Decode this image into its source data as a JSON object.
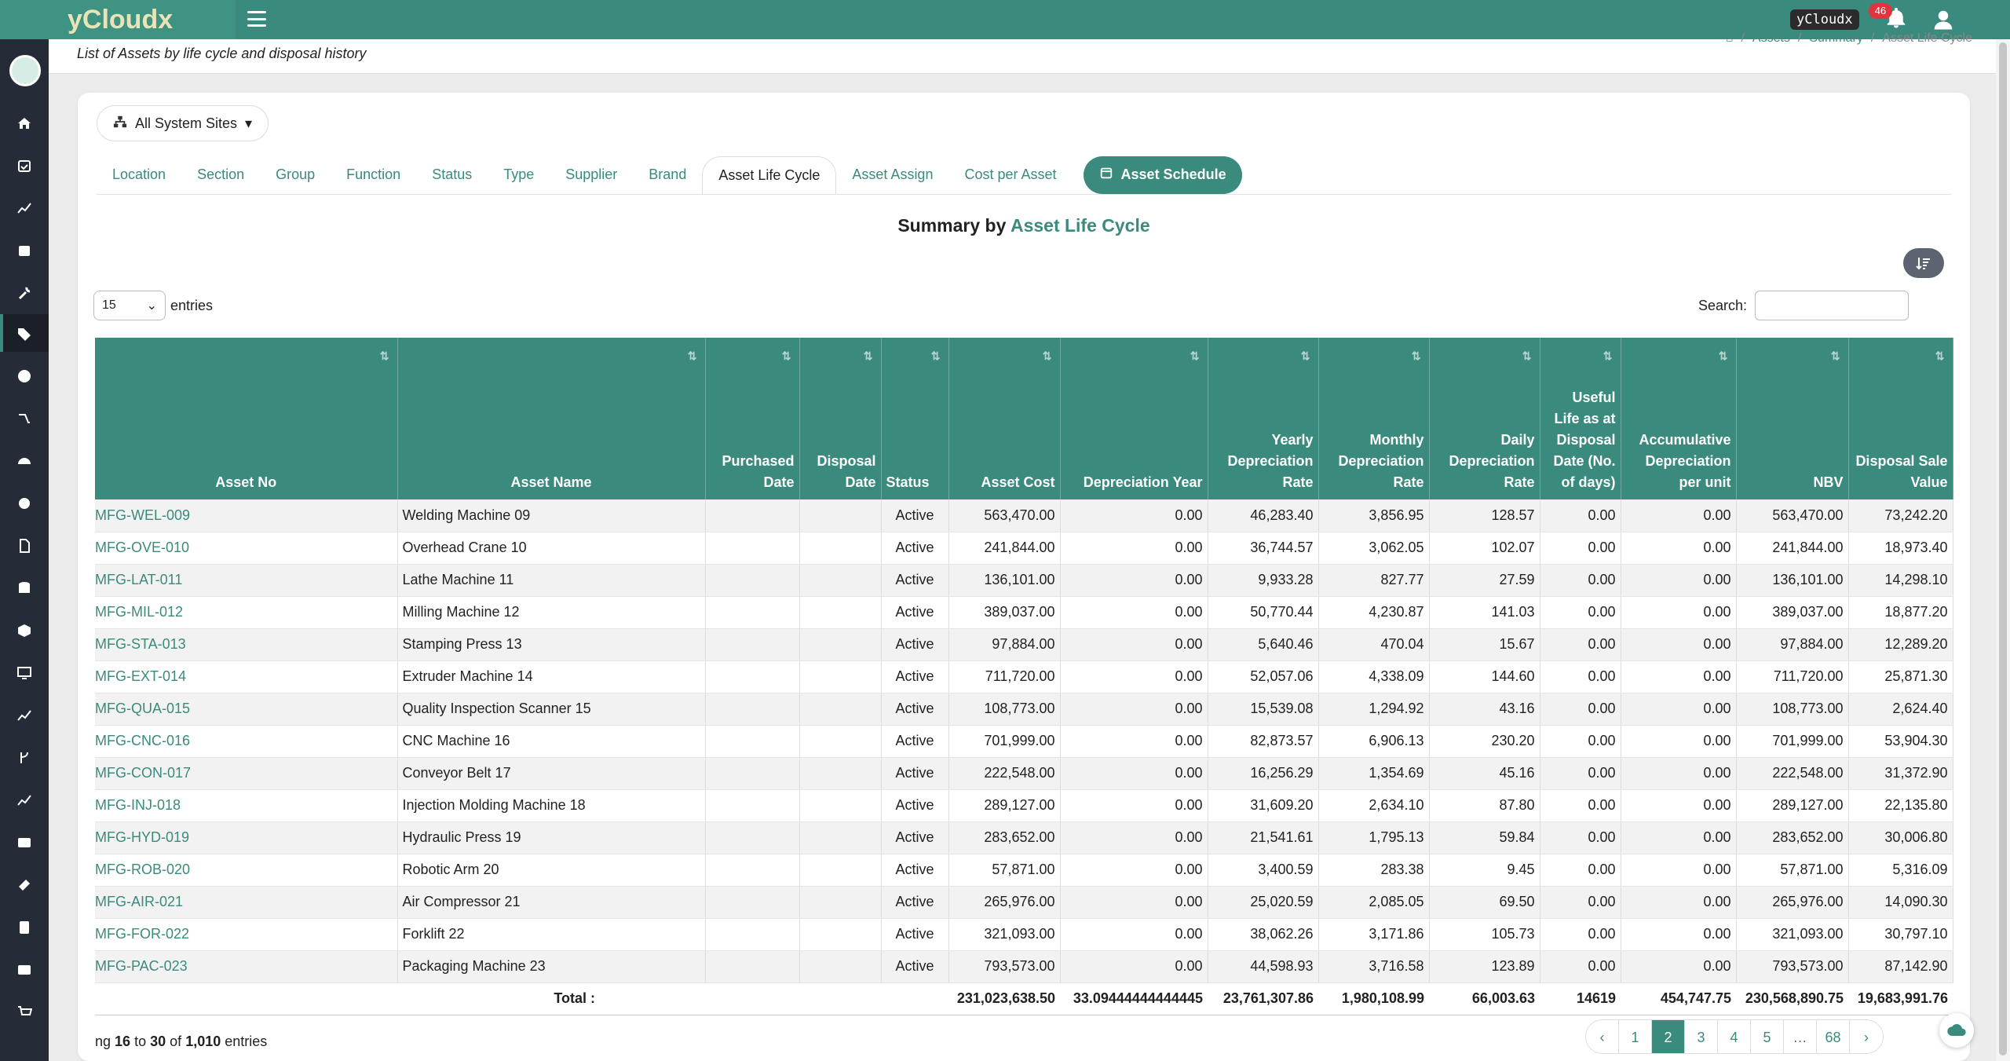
{
  "app": {
    "brand": "yCloudx",
    "tag": "yCloudx",
    "notifications": "46"
  },
  "colors": {
    "accent": "#3a8a7d",
    "sidebar": "#252c38",
    "badge": "#e3343e"
  },
  "header": {
    "title": "List of Assets by life cycle and disposal history",
    "breadcrumb": [
      "Assets",
      "Summary",
      "Asset Life Cycle"
    ]
  },
  "sites_button": "All System Sites",
  "tabs": [
    {
      "label": "Location"
    },
    {
      "label": "Section"
    },
    {
      "label": "Group"
    },
    {
      "label": "Function"
    },
    {
      "label": "Status"
    },
    {
      "label": "Type"
    },
    {
      "label": "Supplier"
    },
    {
      "label": "Brand"
    },
    {
      "label": "Asset Life Cycle"
    },
    {
      "label": "Asset Assign"
    },
    {
      "label": "Cost per Asset"
    },
    {
      "label": "Asset Schedule"
    }
  ],
  "summary": {
    "prefix": "Summary by",
    "accent": "Asset Life Cycle"
  },
  "length": {
    "value": "15",
    "suffix": "entries"
  },
  "search": {
    "label": "Search:",
    "value": ""
  },
  "table": {
    "columns": [
      "Asset No",
      "Asset Name",
      "Purchased Date",
      "Disposal Date",
      "Status",
      "Asset Cost",
      "Depreciation Year",
      "Yearly Depreciation Rate",
      "Monthly Depreciation Rate",
      "Daily Depreciation Rate",
      "Useful Life as at Disposal Date (No. of days)",
      "Accumulative Depreciation per unit",
      "NBV",
      "Disposal Sale Value"
    ],
    "rows": [
      [
        "MFG-WEL-009",
        "Welding Machine 09",
        "",
        "",
        "Active",
        "563,470.00",
        "0.00",
        "46,283.40",
        "3,856.95",
        "128.57",
        "0.00",
        "0.00",
        "563,470.00",
        "73,242.20"
      ],
      [
        "MFG-OVE-010",
        "Overhead Crane 10",
        "",
        "",
        "Active",
        "241,844.00",
        "0.00",
        "36,744.57",
        "3,062.05",
        "102.07",
        "0.00",
        "0.00",
        "241,844.00",
        "18,973.40"
      ],
      [
        "MFG-LAT-011",
        "Lathe Machine 11",
        "",
        "",
        "Active",
        "136,101.00",
        "0.00",
        "9,933.28",
        "827.77",
        "27.59",
        "0.00",
        "0.00",
        "136,101.00",
        "14,298.10"
      ],
      [
        "MFG-MIL-012",
        "Milling Machine 12",
        "",
        "",
        "Active",
        "389,037.00",
        "0.00",
        "50,770.44",
        "4,230.87",
        "141.03",
        "0.00",
        "0.00",
        "389,037.00",
        "18,877.20"
      ],
      [
        "MFG-STA-013",
        "Stamping Press 13",
        "",
        "",
        "Active",
        "97,884.00",
        "0.00",
        "5,640.46",
        "470.04",
        "15.67",
        "0.00",
        "0.00",
        "97,884.00",
        "12,289.20"
      ],
      [
        "MFG-EXT-014",
        "Extruder Machine 14",
        "",
        "",
        "Active",
        "711,720.00",
        "0.00",
        "52,057.06",
        "4,338.09",
        "144.60",
        "0.00",
        "0.00",
        "711,720.00",
        "25,871.30"
      ],
      [
        "MFG-QUA-015",
        "Quality Inspection Scanner 15",
        "",
        "",
        "Active",
        "108,773.00",
        "0.00",
        "15,539.08",
        "1,294.92",
        "43.16",
        "0.00",
        "0.00",
        "108,773.00",
        "2,624.40"
      ],
      [
        "MFG-CNC-016",
        "CNC Machine 16",
        "",
        "",
        "Active",
        "701,999.00",
        "0.00",
        "82,873.57",
        "6,906.13",
        "230.20",
        "0.00",
        "0.00",
        "701,999.00",
        "53,904.30"
      ],
      [
        "MFG-CON-017",
        "Conveyor Belt 17",
        "",
        "",
        "Active",
        "222,548.00",
        "0.00",
        "16,256.29",
        "1,354.69",
        "45.16",
        "0.00",
        "0.00",
        "222,548.00",
        "31,372.90"
      ],
      [
        "MFG-INJ-018",
        "Injection Molding Machine 18",
        "",
        "",
        "Active",
        "289,127.00",
        "0.00",
        "31,609.20",
        "2,634.10",
        "87.80",
        "0.00",
        "0.00",
        "289,127.00",
        "22,135.80"
      ],
      [
        "MFG-HYD-019",
        "Hydraulic Press 19",
        "",
        "",
        "Active",
        "283,652.00",
        "0.00",
        "21,541.61",
        "1,795.13",
        "59.84",
        "0.00",
        "0.00",
        "283,652.00",
        "30,006.80"
      ],
      [
        "MFG-ROB-020",
        "Robotic Arm 20",
        "",
        "",
        "Active",
        "57,871.00",
        "0.00",
        "3,400.59",
        "283.38",
        "9.45",
        "0.00",
        "0.00",
        "57,871.00",
        "5,316.09"
      ],
      [
        "MFG-AIR-021",
        "Air Compressor 21",
        "",
        "",
        "Active",
        "265,976.00",
        "0.00",
        "25,020.59",
        "2,085.05",
        "69.50",
        "0.00",
        "0.00",
        "265,976.00",
        "14,090.30"
      ],
      [
        "MFG-FOR-022",
        "Forklift 22",
        "",
        "",
        "Active",
        "321,093.00",
        "0.00",
        "38,062.26",
        "3,171.86",
        "105.73",
        "0.00",
        "0.00",
        "321,093.00",
        "30,797.10"
      ],
      [
        "MFG-PAC-023",
        "Packaging Machine 23",
        "",
        "",
        "Active",
        "793,573.00",
        "0.00",
        "44,598.93",
        "3,716.58",
        "123.89",
        "0.00",
        "0.00",
        "793,573.00",
        "87,142.90"
      ]
    ],
    "totals": {
      "label": "Total :",
      "values": [
        "231,023,638.50",
        "33.09444444444445",
        "23,761,307.86",
        "1,980,108.99",
        "66,003.63",
        "14619",
        "454,747.75",
        "230,568,890.75",
        "19,683,991.76"
      ]
    }
  },
  "info": {
    "pre": "ng",
    "from": "16",
    "to_word": "to",
    "to": "30",
    "of_word": "of",
    "total": "1,010",
    "suffix": "entries"
  },
  "pagination": [
    "1",
    "2",
    "3",
    "4",
    "5",
    "…",
    "68"
  ],
  "pagination_active": "2"
}
